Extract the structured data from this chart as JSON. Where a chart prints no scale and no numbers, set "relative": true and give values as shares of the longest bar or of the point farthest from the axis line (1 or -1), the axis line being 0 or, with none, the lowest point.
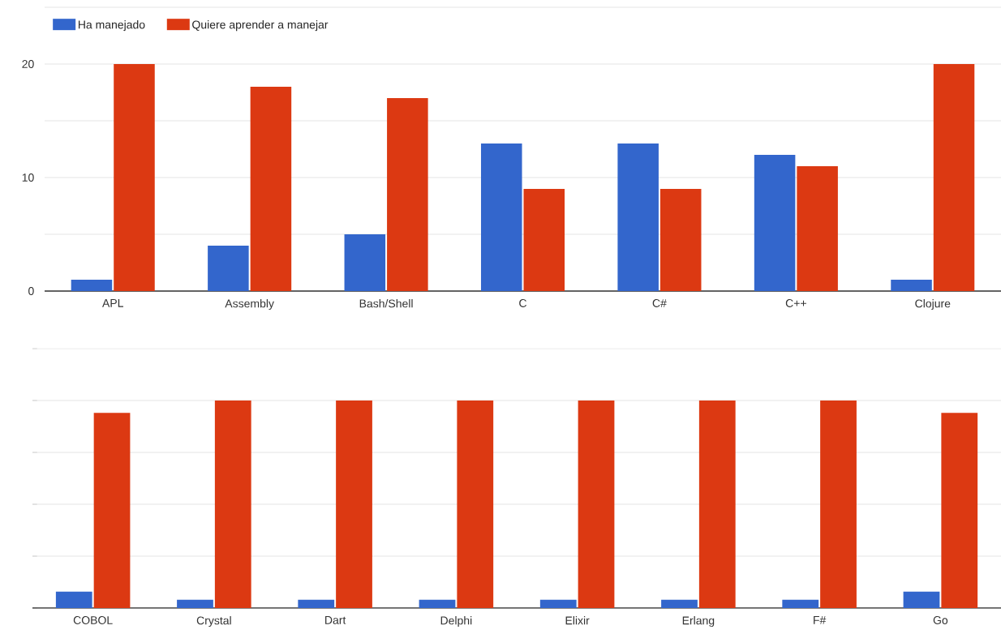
{
  "chart_data": [
    {
      "type": "bar",
      "categories": [
        "APL",
        "Assembly",
        "Bash/Shell",
        "C",
        "C#",
        "C++",
        "Clojure"
      ],
      "series": [
        {
          "name": "Ha manejado",
          "color": "#3366cc",
          "values": [
            1,
            4,
            5,
            13,
            13,
            12,
            1
          ]
        },
        {
          "name": "Quiere aprender a manejar",
          "color": "#dc3912",
          "values": [
            20,
            18,
            17,
            9,
            9,
            11,
            20
          ]
        }
      ],
      "ylim": [
        0,
        25
      ],
      "yticks": [
        0,
        {
          "value": 5,
          "label": null
        },
        10,
        {
          "value": 15,
          "label": null
        },
        20,
        {
          "value": 25,
          "label": null
        }
      ],
      "grid": "y",
      "legend": "top left"
    },
    {
      "type": "bar",
      "categories": [
        "COBOL",
        "Crystal",
        "Dart",
        "Delphi",
        "Elixir",
        "Erlang",
        "F#",
        "Go"
      ],
      "series": [
        {
          "color": "#3366cc",
          "values": [
            0.08,
            0.04,
            0.04,
            0.04,
            0.04,
            0.04,
            0.04,
            0.08
          ]
        },
        {
          "color": "#dc3912",
          "values": [
            0.94,
            1,
            1,
            1,
            1,
            1,
            1,
            0.94
          ]
        }
      ],
      "relative": true,
      "grid": "y"
    }
  ]
}
